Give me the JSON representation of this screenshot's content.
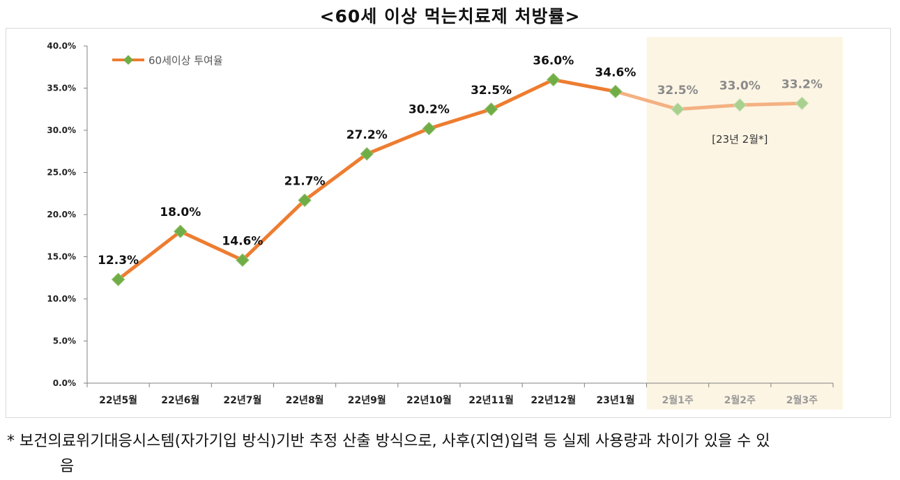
{
  "title": "<60세 이상 먹는치료제 처방률>",
  "footnote": {
    "line1": "* 보건의료위기대응시스템(자가기입 방식)기반 추정 산출 방식으로, 사후(지연)입력 등 실제 사용량과 차이가 있을 수 있",
    "line2": "음"
  },
  "chart_data": {
    "type": "line",
    "title": "<60세 이상 먹는치료제 처방률>",
    "categories": [
      "22년5월",
      "22년6월",
      "22년7월",
      "22년8월",
      "22년9월",
      "22년10월",
      "22년11월",
      "22년12월",
      "23년1월",
      "2월1주",
      "2월2주",
      "2월3주"
    ],
    "series": [
      {
        "name": "60세이상 투여율",
        "values": [
          12.3,
          18.0,
          14.6,
          21.7,
          27.2,
          30.2,
          32.5,
          36.0,
          34.6,
          32.5,
          33.0,
          33.2
        ],
        "labels": [
          "12.3%",
          "18.0%",
          "14.6%",
          "21.7%",
          "27.2%",
          "30.2%",
          "32.5%",
          "36.0%",
          "34.6%",
          "32.5%",
          "33.0%",
          "33.2%"
        ]
      }
    ],
    "yticks": [
      "0.0%",
      "5.0%",
      "10.0%",
      "15.0%",
      "20.0%",
      "25.0%",
      "30.0%",
      "35.0%",
      "40.0%"
    ],
    "ylim": [
      0,
      40
    ],
    "highlight_start_index": 9,
    "highlight_label": "[23년 2월*]",
    "legend_position": "top-left",
    "colors": {
      "line": "#ed7d31",
      "line_faded": "#f4b183",
      "marker": "#70ad47",
      "marker_faded": "#a9d08e",
      "highlight_bg": "#fdf5e4",
      "axis": "#808080"
    }
  }
}
